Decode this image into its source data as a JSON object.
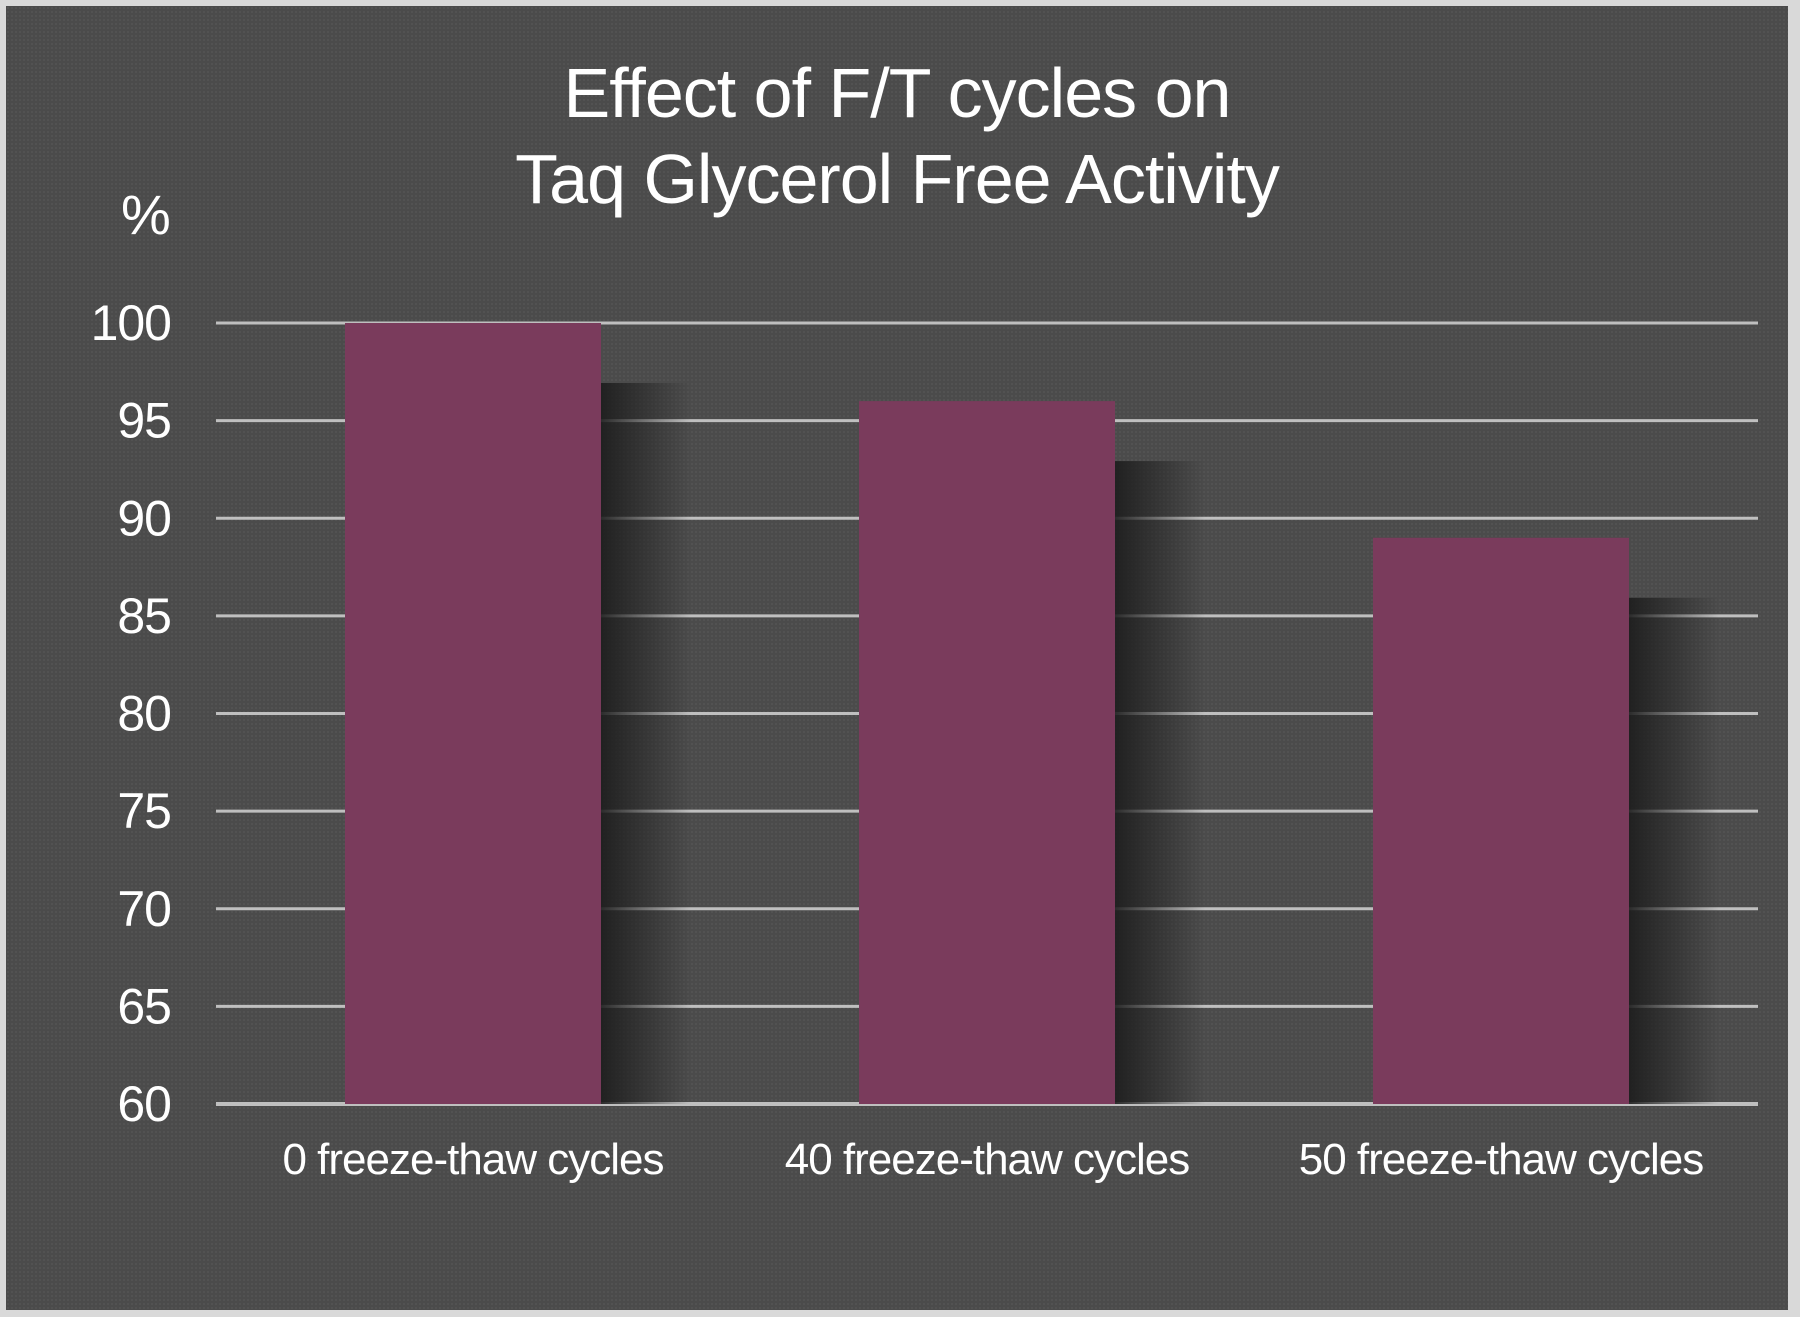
{
  "chart_data": {
    "type": "bar",
    "title": [
      "Effect of F/T cycles on",
      "Taq Glycerol Free Activity"
    ],
    "ylabel": "%",
    "xlabel": "",
    "categories": [
      "0 freeze-thaw cycles",
      "40 freeze-thaw cycles",
      "50 freeze-thaw cycles"
    ],
    "values": [
      100,
      96,
      89
    ],
    "ylim": [
      60,
      100
    ],
    "yticks": [
      "60",
      "65",
      "70",
      "75",
      "80",
      "85",
      "90",
      "95",
      "100"
    ],
    "grid": true,
    "legend": "none",
    "colors": {
      "bar": "#7a3b5c",
      "background": "#4b4b4b",
      "grid": "#bfbfbf",
      "text": "#ffffff"
    }
  }
}
